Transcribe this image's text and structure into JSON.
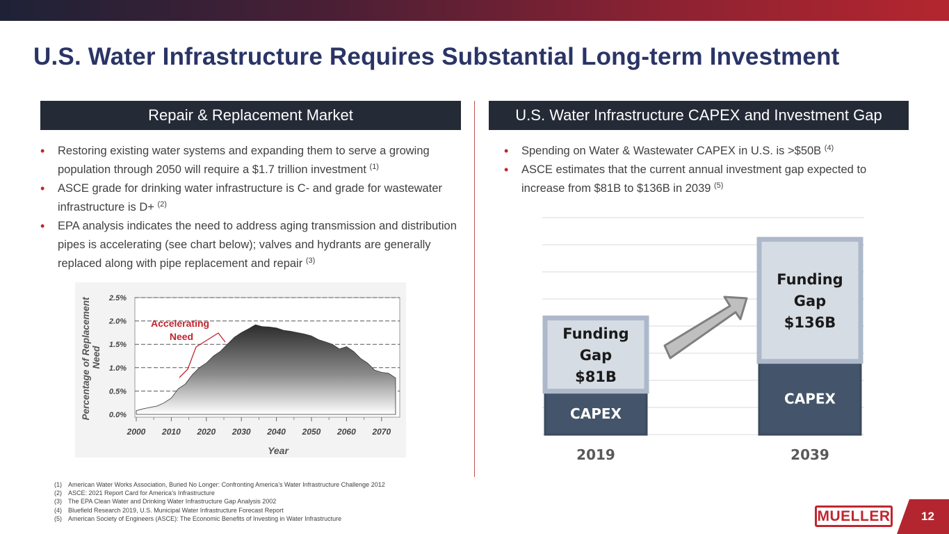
{
  "page_title": "U.S. Water Infrastructure Requires Substantial Long-term Investment",
  "left_panel": {
    "header": "Repair & Replacement Market",
    "bullets": [
      {
        "text": "Restoring existing water systems and expanding them to serve a growing population through 2050 will require a $1.7 trillion investment ",
        "ref": "(1)"
      },
      {
        "text": "ASCE grade for drinking water infrastructure is C- and grade for wastewater infrastructure is D+ ",
        "ref": "(2)"
      },
      {
        "text": "EPA analysis indicates the need to address aging transmission and distribution pipes is accelerating (see chart below); valves and hydrants are generally replaced along with pipe replacement and repair ",
        "ref": "(3)"
      }
    ]
  },
  "right_panel": {
    "header": "U.S. Water Infrastructure CAPEX and Investment Gap",
    "bullets": [
      {
        "text": "Spending on Water & Wastewater CAPEX in U.S. is >$50B ",
        "ref": "(4)"
      },
      {
        "text": "ASCE estimates that the current annual investment gap expected to increase from $81B to $136B in 2039 ",
        "ref": "(5)"
      }
    ]
  },
  "chart_data": [
    {
      "type": "area",
      "title": "",
      "xlabel": "Year",
      "ylabel": "Percentage of Replacement Need",
      "x_ticks": [
        "2000",
        "2010",
        "2020",
        "2030",
        "2040",
        "2050",
        "2060",
        "2070"
      ],
      "y_ticks": [
        "0.0%",
        "0.5%",
        "1.0%",
        "1.5%",
        "2.0%",
        "2.5%"
      ],
      "xlim": [
        2000,
        2075
      ],
      "ylim": [
        0,
        2.5
      ],
      "grid": "horizontal dashed",
      "annotation": "Accelerating Need",
      "annotation_color": "#c0262f",
      "x": [
        2000,
        2002,
        2004,
        2006,
        2008,
        2010,
        2012,
        2014,
        2016,
        2018,
        2020,
        2022,
        2024,
        2026,
        2028,
        2030,
        2032,
        2034,
        2036,
        2038,
        2040,
        2042,
        2044,
        2046,
        2048,
        2050,
        2052,
        2054,
        2056,
        2058,
        2060,
        2062,
        2064,
        2066,
        2068,
        2070,
        2072,
        2074
      ],
      "values": [
        0.08,
        0.12,
        0.15,
        0.18,
        0.25,
        0.35,
        0.55,
        0.65,
        0.85,
        1.0,
        1.1,
        1.25,
        1.35,
        1.5,
        1.65,
        1.75,
        1.83,
        1.92,
        1.88,
        1.87,
        1.85,
        1.8,
        1.78,
        1.75,
        1.72,
        1.68,
        1.6,
        1.55,
        1.5,
        1.4,
        1.45,
        1.35,
        1.2,
        1.1,
        0.95,
        0.9,
        0.88,
        0.78
      ]
    },
    {
      "type": "bar",
      "stacked": true,
      "categories": [
        "2019",
        "2039"
      ],
      "series": [
        {
          "name": "CAPEX",
          "label": "CAPEX",
          "values": [
            16,
            27
          ],
          "color": "#44546a"
        },
        {
          "name": "Funding Gap",
          "label_lines": [
            [
              "Funding",
              "Gap",
              "$81B"
            ],
            [
              "Funding",
              "Gap",
              "$136B"
            ]
          ],
          "values": [
            27,
            45
          ],
          "color": "#d6dce4",
          "border": "#adb9ca"
        }
      ],
      "ylim": [
        0,
        80
      ],
      "grid": "horizontal"
    }
  ],
  "footnotes": [
    {
      "num": "(1)",
      "text": "American Water Works Association, Buried No Longer: Confronting America’s Water Infrastructure Challenge 2012"
    },
    {
      "num": "(2)",
      "text": "ASCE: 2021 Report Card for America’s Infrastructure"
    },
    {
      "num": "(3)",
      "text": "The EPA Clean Water and Drinking Water Infrastructure Gap Analysis 2002"
    },
    {
      "num": "(4)",
      "text": "Bluefield Research 2019, U.S. Municipal Water Infrastructure Forecast Report"
    },
    {
      "num": "(5)",
      "text": "American Society of Engineers (ASCE):  The Economic Benefits of Investing in Water Infrastructure"
    }
  ],
  "logo_text": "MUELLER",
  "page_number": "12",
  "colors": {
    "title": "#2a3466",
    "accent": "#c0262f",
    "header_bg": "#242a36",
    "capex": "#44546a",
    "gap": "#d6dce4"
  }
}
